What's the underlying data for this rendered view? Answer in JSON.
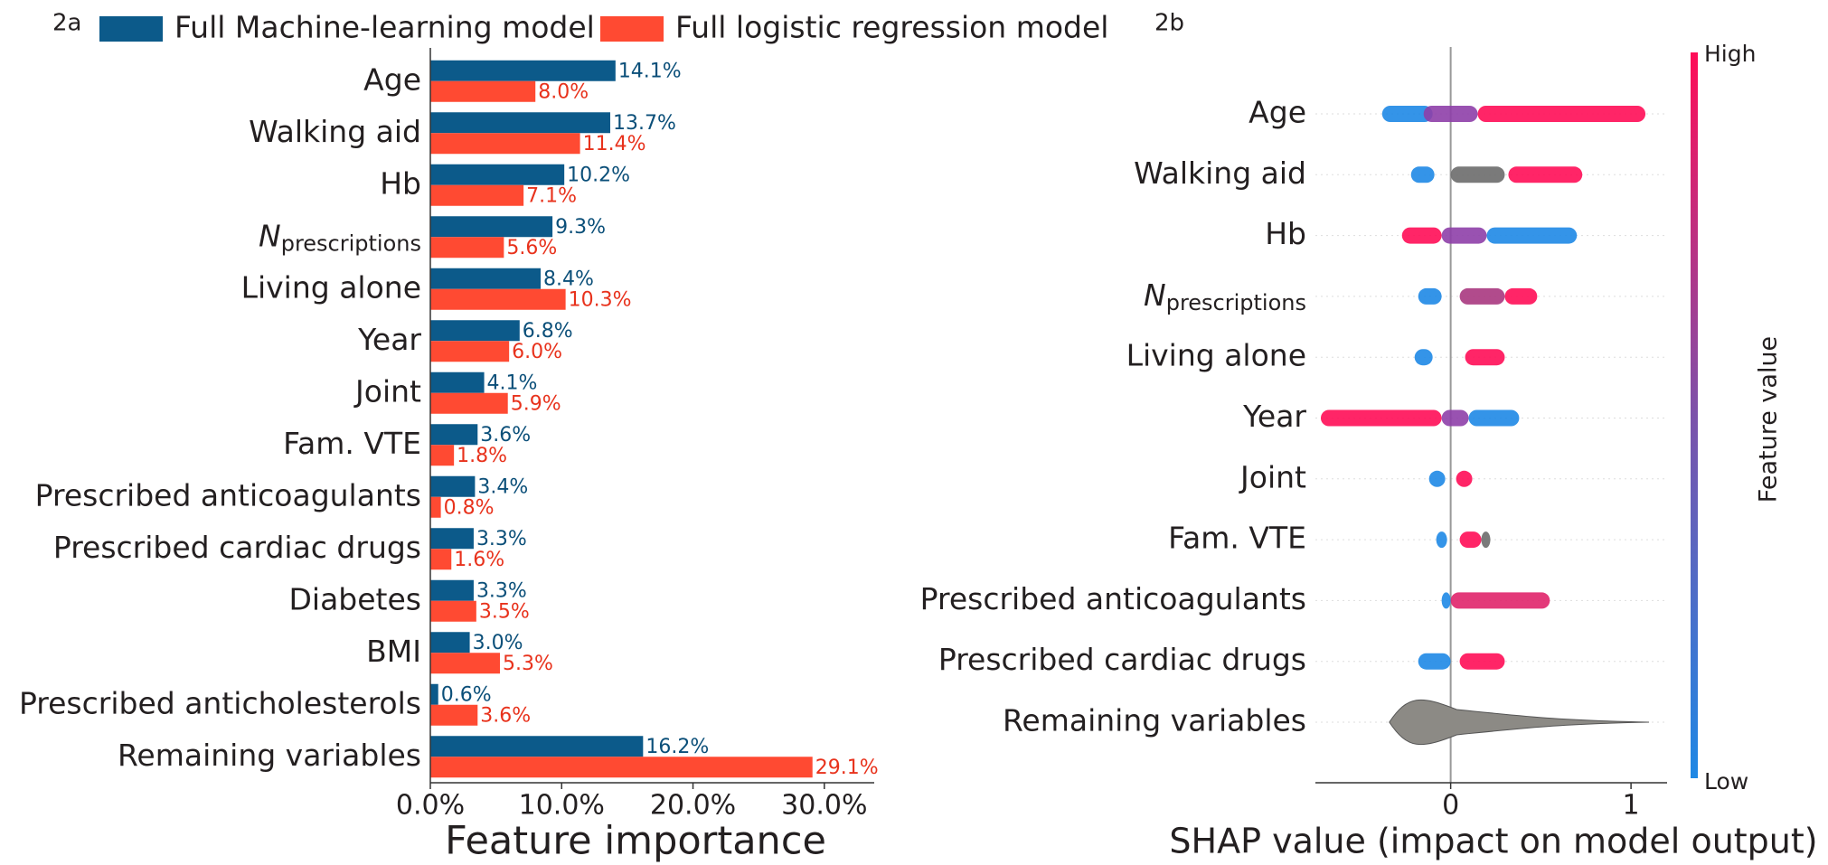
{
  "chart_data": [
    {
      "type": "hbar",
      "panel": "2a",
      "categories": [
        "Age",
        "Walking aid",
        "Hb",
        {
          "main": "N",
          "sub": "prescriptions"
        },
        "Living alone",
        "Year",
        "Joint",
        "Fam.  VTE",
        "Prescribed anticoagulants",
        "Prescribed cardiac drugs",
        "Diabetes",
        "BMI",
        "Prescribed anticholesterols",
        "Remaining variables"
      ],
      "series": [
        {
          "name": "Full Machine-learning model",
          "color": "#0c5a8a",
          "label_color": "#0b4f79",
          "values": [
            14.1,
            13.7,
            10.2,
            9.3,
            8.4,
            6.8,
            4.1,
            3.6,
            3.4,
            3.3,
            3.3,
            3.0,
            0.6,
            16.2
          ],
          "value_labels": [
            "14.1%",
            "13.7%",
            "10.2%",
            "9.3%",
            "8.4%",
            "6.8%",
            "4.1%",
            "3.6%",
            "3.4%",
            "3.3%",
            "3.3%",
            "3.0%",
            "0.6%",
            "16.2%"
          ]
        },
        {
          "name": "Full logistic regression model",
          "color": "#ff4a32",
          "label_color": "#e8321c",
          "values": [
            8.0,
            11.4,
            7.1,
            5.6,
            10.3,
            6.0,
            5.9,
            1.8,
            0.8,
            1.6,
            3.5,
            5.3,
            3.6,
            29.1
          ],
          "value_labels": [
            "8.0%",
            "11.4%",
            "7.1%",
            "5.6%",
            "10.3%",
            "6.0%",
            "5.9%",
            "1.8%",
            "0.8%",
            "1.6%",
            "3.5%",
            "5.3%",
            "3.6%",
            "29.1%"
          ]
        }
      ],
      "xlim": [
        0,
        33.8
      ],
      "xticks": [
        {
          "value": 0,
          "label": "0.0%"
        },
        {
          "value": 10,
          "label": "10.0%"
        },
        {
          "value": 20,
          "label": "20.0%"
        },
        {
          "value": 30,
          "label": "30.0%"
        }
      ],
      "xlabel": "Feature importance"
    },
    {
      "type": "beeswarm",
      "panel": "2b",
      "categories": [
        "Age",
        "Walking aid",
        "Hb",
        {
          "main": "N",
          "sub": "prescriptions"
        },
        "Living alone",
        "Year",
        "Joint",
        "Fam.  VTE",
        "Prescribed anticoagulants",
        "Prescribed cardiac drugs",
        "Remaining variables"
      ],
      "clusters": [
        [
          {
            "x": [
              -0.38,
              -0.1
            ],
            "color": "#1e88e5"
          },
          {
            "x": [
              -0.15,
              0.15
            ],
            "color": "#8e3fa8"
          },
          {
            "x": [
              0.15,
              1.08
            ],
            "color": "#ff0d57"
          }
        ],
        [
          {
            "x": [
              -0.22,
              -0.09
            ],
            "color": "#1e88e5"
          },
          {
            "x": [
              0.0,
              0.3
            ],
            "color": "#6b6b6b"
          },
          {
            "x": [
              0.32,
              0.73
            ],
            "color": "#ff0d57"
          }
        ],
        [
          {
            "x": [
              -0.27,
              -0.05
            ],
            "color": "#ff0d57"
          },
          {
            "x": [
              -0.05,
              0.2
            ],
            "color": "#8e3fa8"
          },
          {
            "x": [
              0.2,
              0.7
            ],
            "color": "#1e88e5"
          }
        ],
        [
          {
            "x": [
              -0.18,
              -0.05
            ],
            "color": "#1e88e5"
          },
          {
            "x": [
              0.05,
              0.3
            ],
            "color": "#a8377f"
          },
          {
            "x": [
              0.3,
              0.48
            ],
            "color": "#ff0d57"
          }
        ],
        [
          {
            "x": [
              -0.2,
              -0.1
            ],
            "color": "#1e88e5"
          },
          {
            "x": [
              0.08,
              0.3
            ],
            "color": "#ff0d57"
          }
        ],
        [
          {
            "x": [
              -0.72,
              -0.05
            ],
            "color": "#ff0d57"
          },
          {
            "x": [
              -0.05,
              0.1
            ],
            "color": "#8e3fa8"
          },
          {
            "x": [
              0.1,
              0.38
            ],
            "color": "#1e88e5"
          }
        ],
        [
          {
            "x": [
              -0.12,
              -0.03
            ],
            "color": "#1e88e5"
          },
          {
            "x": [
              0.03,
              0.12
            ],
            "color": "#ff0d57"
          }
        ],
        [
          {
            "x": [
              -0.08,
              -0.02
            ],
            "color": "#1e88e5"
          },
          {
            "x": [
              0.05,
              0.17
            ],
            "color": "#ff0d57"
          },
          {
            "x": [
              0.17,
              0.22
            ],
            "color": "#6b6b6b"
          }
        ],
        [
          {
            "x": [
              -0.05,
              0.0
            ],
            "color": "#1e88e5"
          },
          {
            "x": [
              0.0,
              0.55
            ],
            "color": "#e0246a"
          }
        ],
        [
          {
            "x": [
              -0.18,
              0.0
            ],
            "color": "#1e88e5"
          },
          {
            "x": [
              0.05,
              0.3
            ],
            "color": "#ff0d57"
          }
        ],
        [
          {
            "x": [
              -0.34,
              1.1
            ],
            "color": "#8c8a85"
          }
        ]
      ],
      "xlim": [
        -0.75,
        1.2
      ],
      "xticks": [
        0,
        1
      ],
      "xlabel": "SHAP value (impact on model output)",
      "colorbar": {
        "high": "High",
        "low": "Low",
        "label": "Feature value"
      }
    }
  ]
}
